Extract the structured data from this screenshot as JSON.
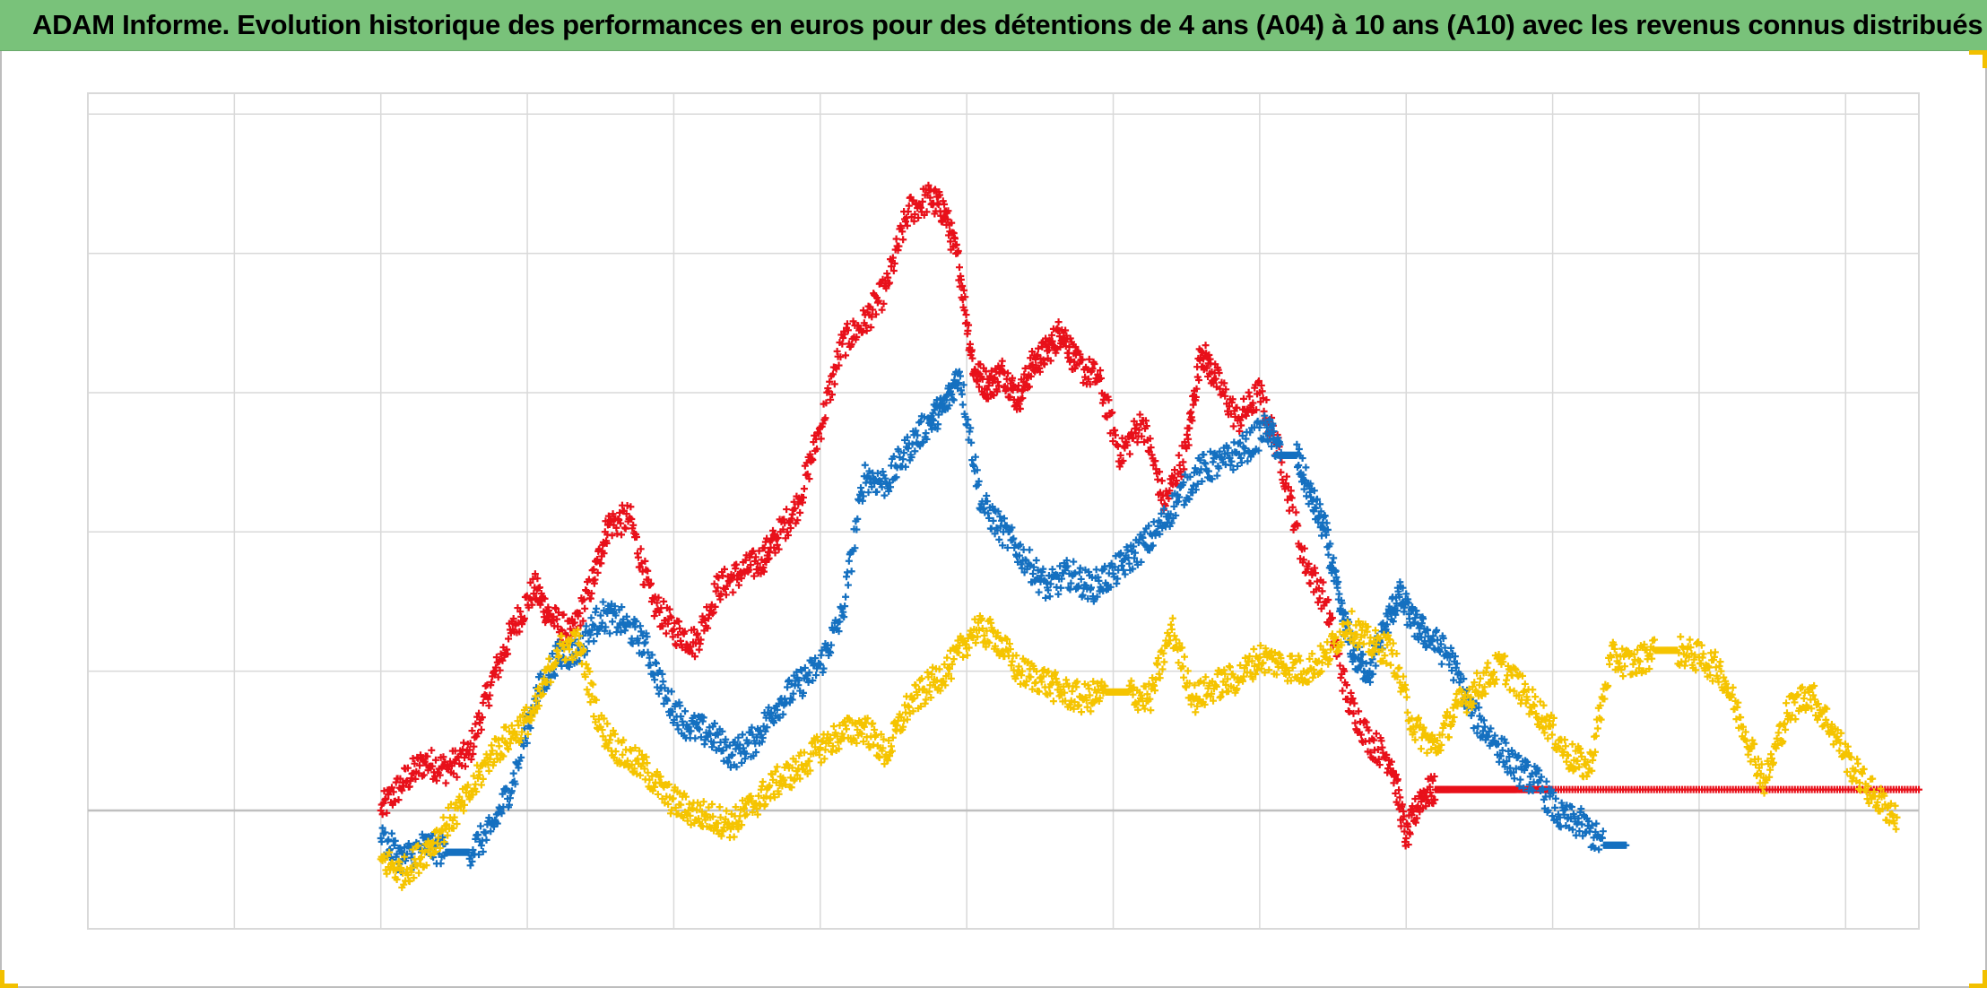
{
  "header": {
    "title": "ADAM Informe. Evolution historique des performances en euros pour des détentions de 4 ans (A04) à 10 ans (A10) avec les revenus connus distribués"
  },
  "colors": {
    "header_bg": "#79c27a",
    "series_red": "#e8101a",
    "series_blue": "#1570c0",
    "series_yellow": "#f5c400",
    "grid": "#d9d9d9",
    "accent_corner": "#f2c000"
  },
  "chart_data": {
    "type": "scatter",
    "title": "ADAM Informe. Evolution historique des performances en euros pour des détentions de 4 ans (A04) à 10 ans (A10) avec les revenus connus distribués",
    "xlabel": "",
    "ylabel": "",
    "xlim": [
      0,
      12.5
    ],
    "ylim": [
      -0.85,
      5.15
    ],
    "grid": true,
    "legend": "none",
    "marker": "plus",
    "tick_labels_visible": false,
    "series": [
      {
        "color": "#e8101a",
        "x": [
          2.0,
          2.15,
          2.3,
          2.45,
          2.6,
          2.75,
          2.9,
          3.05,
          3.15,
          3.3,
          3.45,
          3.55,
          3.7,
          3.85,
          4.0,
          4.15,
          4.3,
          4.45,
          4.6,
          4.7,
          4.85,
          5.0,
          5.15,
          5.3,
          5.45,
          5.6,
          5.75,
          5.85,
          5.95,
          6.05,
          6.15,
          6.25,
          6.35,
          6.45,
          6.55,
          6.65,
          6.75,
          6.9,
          7.05,
          7.2,
          7.35,
          7.5,
          7.6,
          7.7,
          7.85,
          8.0,
          8.15,
          8.3,
          8.45,
          8.6,
          8.75,
          8.9,
          9.0,
          9.1,
          9.2,
          9.3,
          9.45,
          9.6,
          9.75,
          10.0,
          10.5,
          11.0,
          11.5,
          12.0,
          12.5
        ],
        "y": [
          0.0,
          0.2,
          0.35,
          0.3,
          0.4,
          0.9,
          1.3,
          1.6,
          1.4,
          1.25,
          1.65,
          2.05,
          2.1,
          1.5,
          1.3,
          1.2,
          1.6,
          1.7,
          1.8,
          1.95,
          2.2,
          2.75,
          3.35,
          3.5,
          3.75,
          4.3,
          4.4,
          4.3,
          3.9,
          3.15,
          3.05,
          3.15,
          2.95,
          3.2,
          3.3,
          3.45,
          3.2,
          3.1,
          2.55,
          2.8,
          2.2,
          2.6,
          3.3,
          3.1,
          2.8,
          3.0,
          2.5,
          1.8,
          1.5,
          0.8,
          0.5,
          0.35,
          -0.2,
          0.1,
          0.15,
          0.15,
          0.15,
          0.15,
          0.15,
          0.15,
          0.15,
          0.15,
          0.15,
          0.15,
          0.15
        ]
      },
      {
        "color": "#1570c0",
        "x": [
          2.0,
          2.15,
          2.3,
          2.45,
          2.6,
          2.75,
          2.9,
          3.05,
          3.2,
          3.35,
          3.5,
          3.65,
          3.8,
          3.95,
          4.1,
          4.25,
          4.4,
          4.55,
          4.7,
          4.85,
          5.0,
          5.15,
          5.3,
          5.45,
          5.6,
          5.75,
          5.85,
          5.95,
          6.1,
          6.25,
          6.4,
          6.55,
          6.7,
          6.85,
          7.0,
          7.15,
          7.3,
          7.45,
          7.6,
          7.75,
          7.9,
          8.05,
          8.15,
          8.25,
          8.35,
          8.45,
          8.55,
          8.65,
          8.75,
          8.85,
          8.95,
          9.05,
          9.15,
          9.3,
          9.45,
          9.6,
          9.75,
          9.9,
          10.05,
          10.2,
          10.35,
          10.5
        ],
        "y": [
          -0.2,
          -0.35,
          -0.25,
          -0.3,
          -0.3,
          -0.15,
          0.2,
          0.8,
          1.1,
          1.15,
          1.4,
          1.35,
          1.2,
          0.8,
          0.6,
          0.55,
          0.4,
          0.5,
          0.75,
          0.9,
          1.05,
          1.4,
          2.4,
          2.35,
          2.6,
          2.8,
          2.9,
          3.15,
          2.2,
          2.0,
          1.8,
          1.6,
          1.7,
          1.6,
          1.7,
          1.85,
          2.0,
          2.25,
          2.45,
          2.5,
          2.6,
          2.75,
          2.55,
          2.55,
          2.25,
          2.0,
          1.45,
          1.1,
          1.0,
          1.3,
          1.55,
          1.35,
          1.25,
          1.1,
          0.7,
          0.5,
          0.3,
          0.2,
          -0.05,
          -0.1,
          -0.25,
          -0.25
        ]
      },
      {
        "color": "#f5c400",
        "x": [
          2.0,
          2.15,
          2.3,
          2.45,
          2.6,
          2.75,
          2.9,
          3.05,
          3.2,
          3.35,
          3.5,
          3.65,
          3.8,
          3.95,
          4.1,
          4.25,
          4.4,
          4.55,
          4.7,
          4.85,
          5.0,
          5.15,
          5.3,
          5.45,
          5.6,
          5.75,
          5.9,
          6.05,
          6.2,
          6.35,
          6.5,
          6.65,
          6.8,
          6.95,
          7.1,
          7.25,
          7.4,
          7.55,
          7.7,
          7.85,
          8.0,
          8.15,
          8.3,
          8.45,
          8.6,
          8.75,
          8.9,
          9.05,
          9.2,
          9.35,
          9.5,
          9.65,
          9.8,
          9.95,
          10.1,
          10.25,
          10.4,
          10.55,
          10.7,
          10.85,
          11.0,
          11.15,
          11.3,
          11.45,
          11.6,
          11.75,
          11.9,
          12.05,
          12.2,
          12.35
        ],
        "y": [
          -0.35,
          -0.45,
          -0.3,
          -0.1,
          0.1,
          0.4,
          0.55,
          0.7,
          1.15,
          1.2,
          0.6,
          0.4,
          0.3,
          0.1,
          0.0,
          -0.05,
          -0.1,
          0.05,
          0.2,
          0.3,
          0.45,
          0.55,
          0.6,
          0.4,
          0.75,
          0.9,
          1.05,
          1.3,
          1.25,
          1.0,
          0.95,
          0.85,
          0.8,
          0.85,
          0.85,
          0.8,
          1.3,
          0.8,
          0.9,
          0.95,
          1.1,
          1.05,
          1.0,
          1.1,
          1.35,
          1.2,
          1.15,
          0.6,
          0.45,
          0.75,
          0.9,
          1.05,
          0.85,
          0.65,
          0.4,
          0.3,
          1.1,
          1.05,
          1.15,
          1.15,
          1.1,
          1.0,
          0.6,
          0.2,
          0.7,
          0.85,
          0.6,
          0.3,
          0.1,
          -0.05
        ]
      }
    ]
  }
}
